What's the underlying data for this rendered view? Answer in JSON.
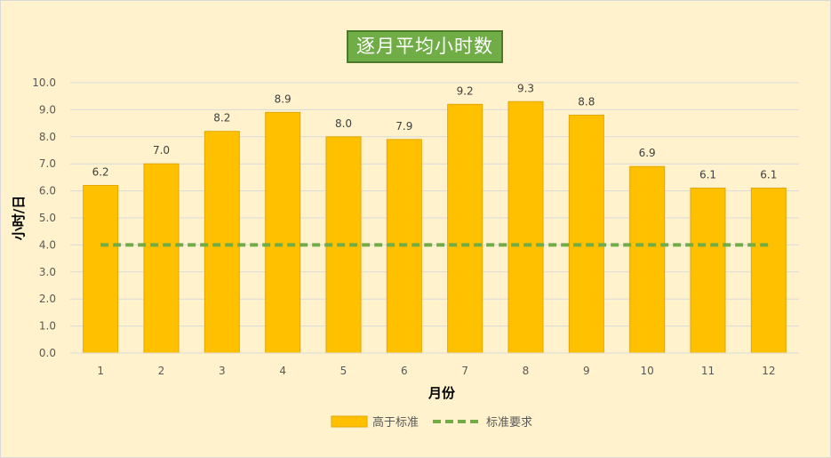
{
  "chart_data": {
    "type": "bar",
    "title": "逐月平均小时数",
    "xlabel": "月份",
    "ylabel": "小时/日",
    "categories": [
      "1",
      "2",
      "3",
      "4",
      "5",
      "6",
      "7",
      "8",
      "9",
      "10",
      "11",
      "12"
    ],
    "series": [
      {
        "name": "高于标准",
        "type": "bar",
        "color": "#FFC000",
        "border": "#E3A600",
        "values": [
          6.2,
          7.0,
          8.2,
          8.9,
          8.0,
          7.9,
          9.2,
          9.3,
          8.8,
          6.9,
          6.1,
          6.1
        ]
      },
      {
        "name": "标准要求",
        "type": "line",
        "style": "dashed",
        "color": "#70AD47",
        "values": [
          4.0,
          4.0,
          4.0,
          4.0,
          4.0,
          4.0,
          4.0,
          4.0,
          4.0,
          4.0,
          4.0,
          4.0
        ]
      }
    ],
    "ylim": [
      0,
      10
    ],
    "yticks": [
      "0.0",
      "1.0",
      "2.0",
      "3.0",
      "4.0",
      "5.0",
      "6.0",
      "7.0",
      "8.0",
      "9.0",
      "10.0"
    ],
    "data_labels": [
      "6.2",
      "7.0",
      "8.2",
      "8.9",
      "8.0",
      "7.9",
      "9.2",
      "9.3",
      "8.8",
      "6.9",
      "6.1",
      "6.1"
    ],
    "grid": true,
    "legend": "bottom"
  }
}
